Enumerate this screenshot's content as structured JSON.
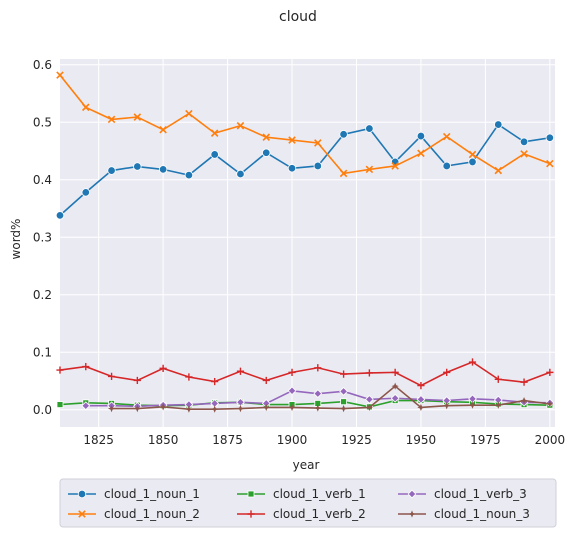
{
  "chart_data": {
    "type": "line",
    "title": "cloud",
    "xlabel": "year",
    "ylabel": "word%",
    "xlim": [
      1810,
      2002
    ],
    "ylim": [
      -0.03,
      0.61
    ],
    "xticks": [
      1825,
      1850,
      1875,
      1900,
      1925,
      1950,
      1975,
      2000
    ],
    "yticks": [
      0.0,
      0.1,
      0.2,
      0.3,
      0.4,
      0.5,
      0.6
    ],
    "ytick_labels": [
      "0.0",
      "0.1",
      "0.2",
      "0.3",
      "0.4",
      "0.5",
      "0.6"
    ],
    "grid": true,
    "legend_position": "below",
    "x": [
      1810,
      1820,
      1830,
      1840,
      1850,
      1860,
      1870,
      1880,
      1890,
      1900,
      1910,
      1920,
      1930,
      1940,
      1950,
      1960,
      1970,
      1980,
      1990,
      2000
    ],
    "series": [
      {
        "name": "cloud_1_noun_1",
        "color": "#1f77b4",
        "marker": "circle",
        "values": [
          0.338,
          0.378,
          0.416,
          0.423,
          0.418,
          0.408,
          0.444,
          0.41,
          0.447,
          0.42,
          0.424,
          0.479,
          0.489,
          0.431,
          0.476,
          0.424,
          0.431,
          0.496,
          0.466,
          0.473
        ]
      },
      {
        "name": "cloud_1_noun_2",
        "color": "#ff7f0e",
        "marker": "x",
        "values": [
          0.582,
          0.526,
          0.505,
          0.509,
          0.487,
          0.515,
          0.481,
          0.494,
          0.474,
          0.469,
          0.464,
          0.411,
          0.418,
          0.424,
          0.446,
          0.475,
          0.444,
          0.416,
          0.445,
          0.428
        ]
      },
      {
        "name": "cloud_1_verb_1",
        "color": "#2ca02c",
        "marker": "square",
        "values": [
          0.009,
          0.012,
          0.011,
          0.008,
          0.007,
          0.008,
          0.012,
          0.013,
          0.009,
          0.009,
          0.011,
          0.014,
          0.005,
          0.016,
          0.016,
          0.014,
          0.013,
          0.01,
          0.009,
          0.008
        ]
      },
      {
        "name": "cloud_1_verb_2",
        "color": "#d62728",
        "marker": "plus",
        "values": [
          0.069,
          0.075,
          0.058,
          0.051,
          0.072,
          0.057,
          0.049,
          0.067,
          0.051,
          0.065,
          0.073,
          0.062,
          0.064,
          0.065,
          0.042,
          0.065,
          0.083,
          0.053,
          0.048,
          0.065
        ]
      },
      {
        "name": "cloud_1_verb_3",
        "color": "#9467bd",
        "marker": "diamond",
        "values": [
          null,
          0.007,
          0.007,
          0.006,
          0.008,
          0.009,
          0.011,
          0.013,
          0.011,
          0.033,
          0.028,
          0.032,
          0.018,
          0.02,
          0.018,
          0.016,
          0.019,
          0.017,
          0.013,
          0.012
        ]
      },
      {
        "name": "cloud_1_noun_3",
        "color": "#8c564b",
        "marker": "star",
        "values": [
          null,
          null,
          0.002,
          0.002,
          0.005,
          0.001,
          0.001,
          0.002,
          0.004,
          0.004,
          0.003,
          0.002,
          0.004,
          0.041,
          0.004,
          0.007,
          0.008,
          0.008,
          0.016,
          0.01
        ]
      }
    ]
  }
}
